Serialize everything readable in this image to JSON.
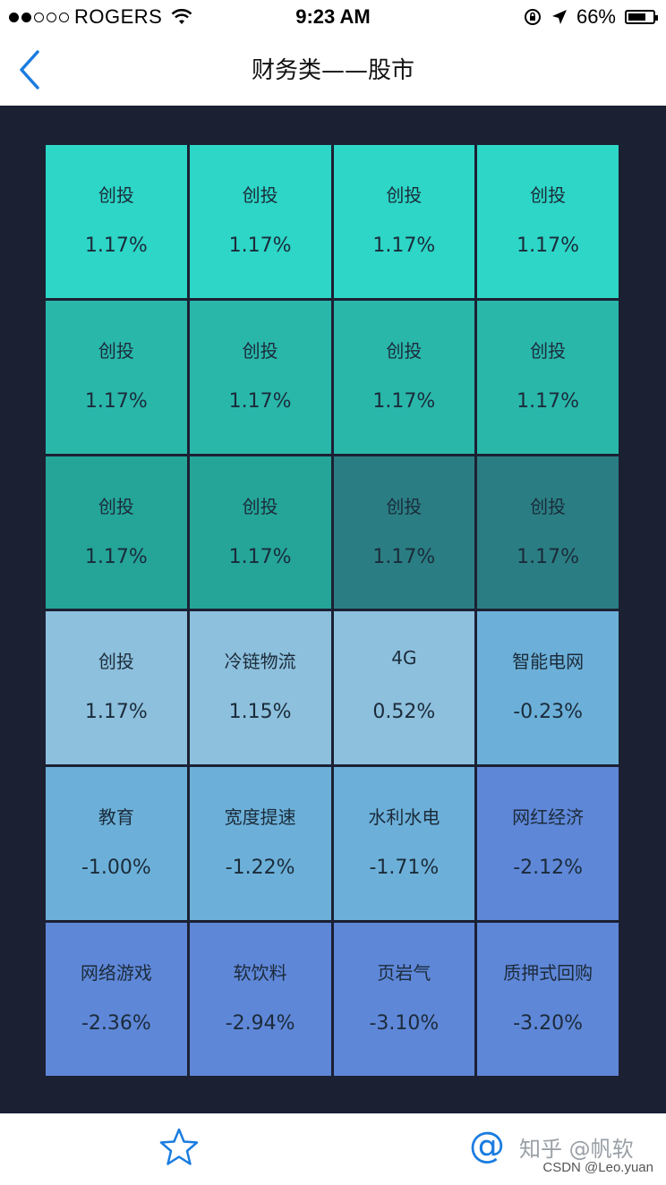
{
  "status_bar": {
    "carrier": "ROGERS",
    "time": "9:23 AM",
    "battery": "66%"
  },
  "nav": {
    "title": "财务类——股市",
    "back_icon": "chevron-left-icon"
  },
  "tiles": [
    {
      "name": "创投",
      "pct": "1.17%",
      "color": "#2dd6c6"
    },
    {
      "name": "创投",
      "pct": "1.17%",
      "color": "#2dd6c6"
    },
    {
      "name": "创投",
      "pct": "1.17%",
      "color": "#2dd6c6"
    },
    {
      "name": "创投",
      "pct": "1.17%",
      "color": "#2dd6c6"
    },
    {
      "name": "创投",
      "pct": "1.17%",
      "color": "#29b7aa"
    },
    {
      "name": "创投",
      "pct": "1.17%",
      "color": "#29b7aa"
    },
    {
      "name": "创投",
      "pct": "1.17%",
      "color": "#29b7aa"
    },
    {
      "name": "创投",
      "pct": "1.17%",
      "color": "#29b7aa"
    },
    {
      "name": "创投",
      "pct": "1.17%",
      "color": "#24a598"
    },
    {
      "name": "创投",
      "pct": "1.17%",
      "color": "#24a598"
    },
    {
      "name": "创投",
      "pct": "1.17%",
      "color": "#2a7e83"
    },
    {
      "name": "创投",
      "pct": "1.17%",
      "color": "#2a7e83"
    },
    {
      "name": "创投",
      "pct": "1.17%",
      "color": "#8dc0dd"
    },
    {
      "name": "冷链物流",
      "pct": "1.15%",
      "color": "#8dc0dd"
    },
    {
      "name": "4G",
      "pct": "0.52%",
      "color": "#8dc0dd"
    },
    {
      "name": "智能电网",
      "pct": "-0.23%",
      "color": "#6cb0d9"
    },
    {
      "name": "教育",
      "pct": "-1.00%",
      "color": "#6cb0d9"
    },
    {
      "name": "宽度提速",
      "pct": "-1.22%",
      "color": "#6cb0d9"
    },
    {
      "name": "水利水电",
      "pct": "-1.71%",
      "color": "#6cb0d9"
    },
    {
      "name": "网红经济",
      "pct": "-2.12%",
      "color": "#5f87d8"
    },
    {
      "name": "网络游戏",
      "pct": "-2.36%",
      "color": "#5f87d8"
    },
    {
      "name": "软饮料",
      "pct": "-2.94%",
      "color": "#5f87d8"
    },
    {
      "name": "页岩气",
      "pct": "-3.10%",
      "color": "#5f87d8"
    },
    {
      "name": "质押式回购",
      "pct": "-3.20%",
      "color": "#5f87d8"
    }
  ],
  "tab_bar": {
    "star_icon": "star-icon",
    "at_icon": "at-icon",
    "at_glyph": "@",
    "watermark_zhihu": "知乎 @帆软",
    "watermark_csdn": "CSDN @Leo.yuan"
  },
  "accent": "#1a7ce0",
  "background_dark": "#1c2033"
}
